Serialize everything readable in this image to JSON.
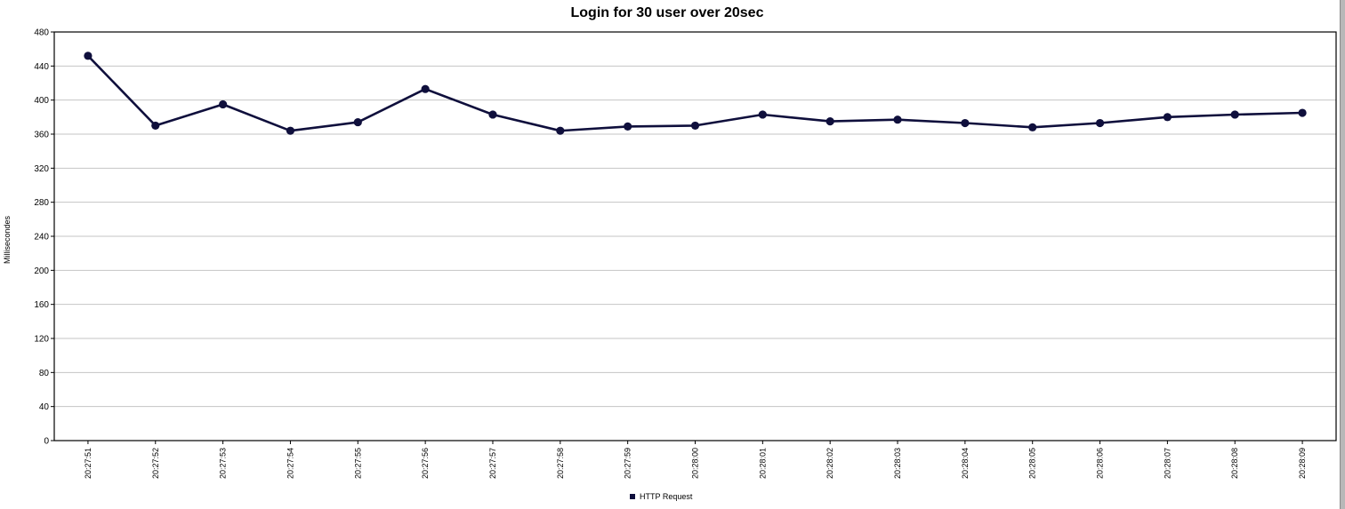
{
  "chart_data": {
    "type": "line",
    "title": "Login for 30 user over 20sec",
    "xlabel": "",
    "ylabel": "Millisecondes",
    "ylim": [
      0,
      480
    ],
    "yticks": [
      0,
      40,
      80,
      120,
      160,
      200,
      240,
      280,
      320,
      360,
      400,
      440,
      480
    ],
    "grid": true,
    "legend_position": "bottom",
    "categories": [
      "20:27:51",
      "20:27:52",
      "20:27:53",
      "20:27:54",
      "20:27:55",
      "20:27:56",
      "20:27:57",
      "20:27:58",
      "20:27:59",
      "20:28:00",
      "20:28:01",
      "20:28:02",
      "20:28:03",
      "20:28:04",
      "20:28:05",
      "20:28:06",
      "20:28:07",
      "20:28:08",
      "20:28:09"
    ],
    "series": [
      {
        "name": "HTTP Request",
        "color": "#0f0f3c",
        "values": [
          452,
          370,
          395,
          364,
          374,
          413,
          383,
          364,
          369,
          370,
          383,
          375,
          377,
          373,
          368,
          373,
          380,
          383,
          385
        ]
      }
    ]
  }
}
